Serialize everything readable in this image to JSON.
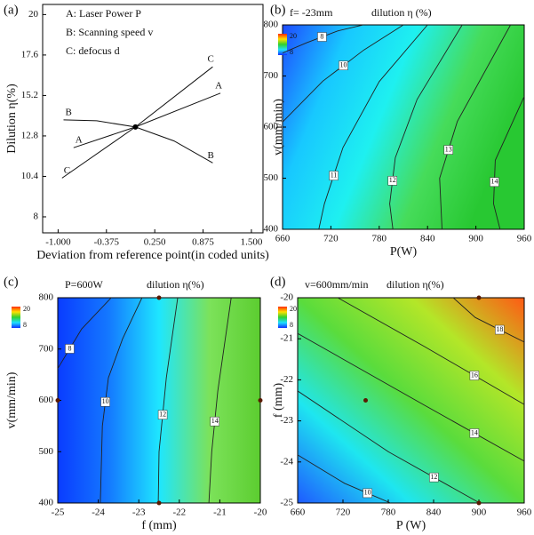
{
  "chart_data": [
    {
      "type": "line",
      "panel_label": "(a)",
      "xlabel": "Deviation from reference point(in coded units)",
      "ylabel": "Dilution η(%)",
      "factors": [
        "A: Laser Power P",
        "B: Scanning speed v",
        "C: defocus d"
      ],
      "xlim": [
        -1.2,
        1.65
      ],
      "ylim": [
        7.05,
        20.6
      ],
      "xticks": [
        {
          "value": -1,
          "label": "-1.000"
        },
        {
          "value": -0.375,
          "label": "-0.375"
        },
        {
          "value": 0.25,
          "label": "0.250"
        },
        {
          "value": 0.875,
          "label": "0.875"
        },
        {
          "value": 1.5,
          "label": "1.500"
        }
      ],
      "yticks": [
        8,
        10.4,
        12.8,
        15.2,
        17.6,
        20
      ],
      "series": [
        {
          "name": "A",
          "color": "#111111",
          "x": [
            -0.8,
            0,
            1.1
          ],
          "values": [
            12.1,
            13.33,
            15.34
          ]
        },
        {
          "name": "B",
          "color": "#111111",
          "x": [
            -0.93,
            -0.5,
            0,
            0.5,
            1.0
          ],
          "values": [
            13.75,
            13.7,
            13.33,
            12.5,
            11.2
          ]
        },
        {
          "name": "C",
          "color": "#111111",
          "x": [
            -0.95,
            0,
            1.0
          ],
          "values": [
            10.3,
            13.33,
            16.9
          ]
        }
      ]
    },
    {
      "type": "contour",
      "panel_label": "(b)",
      "condition": "f= -23mm",
      "title": "dilution η (%)",
      "xlabel": "P(W)",
      "ylabel": "v(mm/min)",
      "xlim": [
        660,
        960
      ],
      "ylim": [
        400,
        800
      ],
      "xticks": [
        660,
        720,
        780,
        840,
        900,
        960
      ],
      "yticks": [
        400,
        500,
        600,
        700,
        800
      ],
      "colormap": [
        "#1e4bff",
        "#18c8ff",
        "#1ef0f0",
        "#46dc5a",
        "#28c832"
      ],
      "colorbar": {
        "max": 20,
        "min": 8,
        "colors": [
          "#ff2a00",
          "#ffe000",
          "#30d030",
          "#20e0ff",
          "#1030ff"
        ]
      },
      "contours": [
        {
          "level": 8,
          "x": [
            760,
            728,
            690,
            660
          ],
          "y": [
            800,
            788,
            765,
            745
          ]
        },
        {
          "level": 10,
          "x": [
            810,
            761,
            710,
            660
          ],
          "y": [
            800,
            751,
            690,
            610
          ]
        },
        {
          "level": 11,
          "x": [
            840,
            780,
            735,
            712,
            705
          ],
          "y": [
            800,
            689,
            560,
            450,
            400
          ]
        },
        {
          "level": 12,
          "x": [
            883,
            827,
            800,
            793,
            797
          ],
          "y": [
            800,
            654,
            540,
            450,
            400
          ]
        },
        {
          "level": 13,
          "x": [
            943,
            877,
            855,
            858
          ],
          "y": [
            800,
            611,
            500,
            400
          ]
        },
        {
          "level": 14,
          "x": [
            960,
            924,
            922,
            930
          ],
          "y": [
            660,
            535,
            450,
            400
          ]
        }
      ]
    },
    {
      "type": "contour",
      "panel_label": "(c)",
      "condition": "P=600W",
      "title": "dilution η(%)",
      "xlabel": "f (mm)",
      "ylabel": "v(mm/min)",
      "xlim": [
        -25,
        -20
      ],
      "ylim": [
        400,
        800
      ],
      "xticks": [
        -25,
        -24,
        -23,
        -22,
        -21,
        -20
      ],
      "yticks": [
        400,
        500,
        600,
        700,
        800
      ],
      "colormap": [
        "#0a3cff",
        "#1478ff",
        "#1ee6ff",
        "#7ce25a",
        "#5ccd30"
      ],
      "colorbar": {
        "max": 20,
        "min": 8,
        "colors": [
          "#ff2a00",
          "#ffe000",
          "#30d030",
          "#20e0ff",
          "#1030ff"
        ]
      },
      "points": {
        "x": [
          -25,
          -22.5,
          -22.5,
          -20
        ],
        "y": [
          600,
          800,
          400,
          600
        ]
      },
      "contours": [
        {
          "level": 8,
          "x": [
            -23.68,
            -24.41,
            -25
          ],
          "y": [
            800,
            739,
            662
          ]
        },
        {
          "level": 10,
          "x": [
            -22.92,
            -23.4,
            -23.75,
            -23.9,
            -23.95
          ],
          "y": [
            800,
            720,
            644,
            550,
            400
          ]
        },
        {
          "level": 12,
          "x": [
            -22.04,
            -22.32,
            -22.5,
            -22.52
          ],
          "y": [
            800,
            644,
            500,
            400
          ]
        },
        {
          "level": 14,
          "x": [
            -20.72,
            -21.05,
            -21.2,
            -21.27
          ],
          "y": [
            800,
            618,
            500,
            400
          ]
        }
      ]
    },
    {
      "type": "contour",
      "panel_label": "(d)",
      "condition": "v=600mm/min",
      "title": "dilution η(%)",
      "xlabel": "P (W)",
      "ylabel": "f (mm)",
      "xlim": [
        660,
        960
      ],
      "ylim": [
        -25,
        -20
      ],
      "xticks": [
        660,
        720,
        780,
        840,
        900,
        960
      ],
      "yticks": [
        -25,
        -24,
        -23,
        -22,
        -21,
        -20
      ],
      "colormap": [
        "#1e5aff",
        "#1ee6f0",
        "#5adc3c",
        "#b4e628",
        "#ff5a14"
      ],
      "colorbar": {
        "max": 20,
        "min": 8,
        "colors": [
          "#ff2a00",
          "#ffe000",
          "#30d030",
          "#20e0ff",
          "#1030ff"
        ]
      },
      "points": {
        "x": [
          900,
          750,
          900
        ],
        "y": [
          -20,
          -22.5,
          -25
        ]
      },
      "contours": [
        {
          "level": 10,
          "x": [
            660,
            722,
            783
          ],
          "y": [
            -23.83,
            -24.52,
            -25
          ]
        },
        {
          "level": 12,
          "x": [
            660,
            780,
            901
          ],
          "y": [
            -22.27,
            -23.75,
            -25
          ]
        },
        {
          "level": 14,
          "x": [
            660,
            828,
            960
          ],
          "y": [
            -20.87,
            -22.62,
            -23.98
          ]
        },
        {
          "level": 16,
          "x": [
            713,
            828,
            960
          ],
          "y": [
            -20,
            -21.19,
            -22.6
          ]
        },
        {
          "level": 18,
          "x": [
            866,
            895,
            960
          ],
          "y": [
            -20,
            -20.48,
            -21.08
          ]
        }
      ]
    }
  ]
}
